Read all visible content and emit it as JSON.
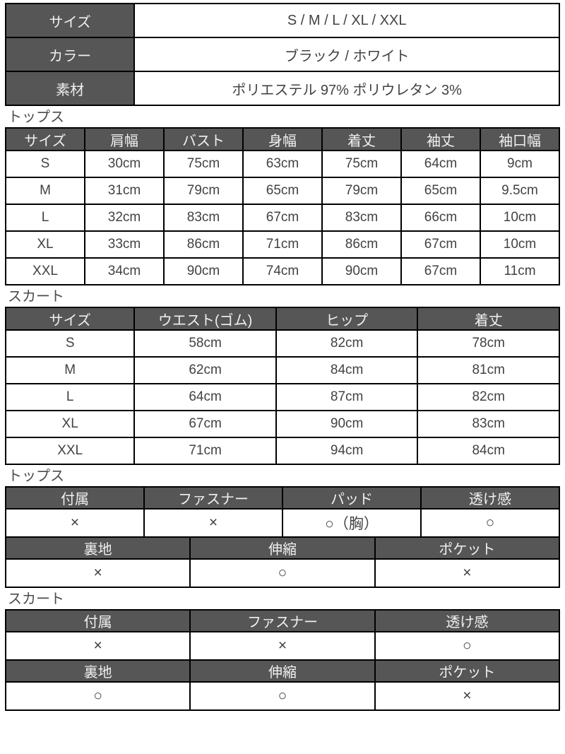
{
  "colors": {
    "header_bg": "#565656",
    "header_text": "#f0f0f0",
    "body_text": "#424242",
    "border": "#000000",
    "label_text": "#4b4b4b"
  },
  "info_table": {
    "rows": [
      {
        "label": "サイズ",
        "value": "S / M / L / XL / XXL"
      },
      {
        "label": "カラー",
        "value": "ブラック / ホワイト"
      },
      {
        "label": "素材",
        "value": "ポリエステル 97% ポリウレタン 3%"
      }
    ]
  },
  "tops_size": {
    "label": "トップス",
    "headers": [
      "サイズ",
      "肩幅",
      "バスト",
      "身幅",
      "着丈",
      "袖丈",
      "袖口幅"
    ],
    "rows": [
      [
        "S",
        "30cm",
        "75cm",
        "63cm",
        "75cm",
        "64cm",
        "9cm"
      ],
      [
        "M",
        "31cm",
        "79cm",
        "65cm",
        "79cm",
        "65cm",
        "9.5cm"
      ],
      [
        "L",
        "32cm",
        "83cm",
        "67cm",
        "83cm",
        "66cm",
        "10cm"
      ],
      [
        "XL",
        "33cm",
        "86cm",
        "71cm",
        "86cm",
        "67cm",
        "10cm"
      ],
      [
        "XXL",
        "34cm",
        "90cm",
        "74cm",
        "90cm",
        "67cm",
        "11cm"
      ]
    ]
  },
  "skirt_size": {
    "label": "スカート",
    "headers": [
      "サイズ",
      "ウエスト(ゴム)",
      "ヒップ",
      "着丈"
    ],
    "rows": [
      [
        "S",
        "58cm",
        "82cm",
        "78cm"
      ],
      [
        "M",
        "62cm",
        "84cm",
        "81cm"
      ],
      [
        "L",
        "64cm",
        "87cm",
        "82cm"
      ],
      [
        "XL",
        "67cm",
        "90cm",
        "83cm"
      ],
      [
        "XXL",
        "71cm",
        "94cm",
        "84cm"
      ]
    ]
  },
  "tops_spec": {
    "label": "トップス",
    "spec1_headers": [
      "付属",
      "ファスナー",
      "パッド",
      "透け感"
    ],
    "spec1_values": [
      "×",
      "×",
      "○（胸）",
      "○"
    ],
    "spec2_headers": [
      "裏地",
      "伸縮",
      "ポケット"
    ],
    "spec2_values": [
      "×",
      "○",
      "×"
    ]
  },
  "skirt_spec": {
    "label": "スカート",
    "spec1_headers": [
      "付属",
      "ファスナー",
      "透け感"
    ],
    "spec1_values": [
      "×",
      "×",
      "○"
    ],
    "spec2_headers": [
      "裏地",
      "伸縮",
      "ポケット"
    ],
    "spec2_values": [
      "○",
      "○",
      "×"
    ]
  }
}
